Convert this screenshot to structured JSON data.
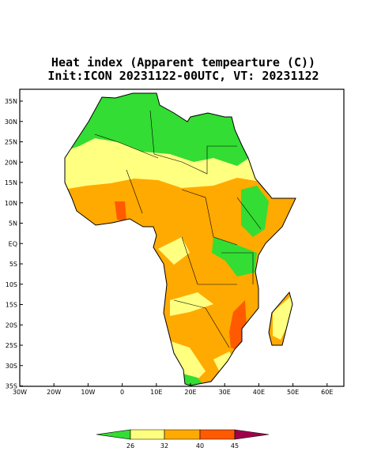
{
  "title": "Heat index (Apparent tempearture (C))",
  "subtitle": "Init:ICON 20231122-00UTC, VT: 20231122",
  "lat_labels": [
    "35N",
    "30N",
    "25N",
    "20N",
    "15N",
    "10N",
    "5N",
    "EQ",
    "5S",
    "10S",
    "15S",
    "20S",
    "25S",
    "30S",
    "35S"
  ],
  "lon_labels": [
    "30W",
    "20W",
    "10W",
    "0",
    "10E",
    "20E",
    "30E",
    "40E",
    "50E",
    "60E"
  ],
  "colorbar": {
    "labels": [
      26,
      32,
      40,
      45
    ],
    "colors": [
      "#33dd33",
      "#ffff80",
      "#ffaa00",
      "#ff5a00",
      "#a0004a"
    ]
  }
}
